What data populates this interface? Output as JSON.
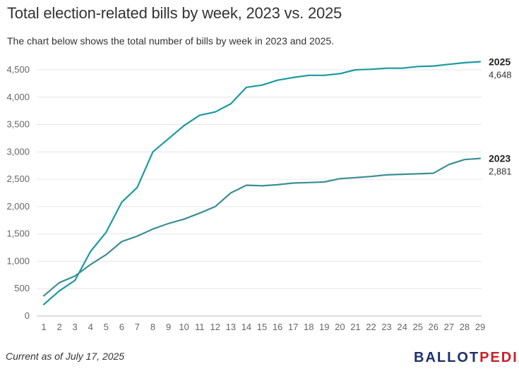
{
  "title": "Total election-related bills by week, 2023 vs. 2025",
  "subtitle": "The chart below shows the total number of bills by week in 2023 and 2025.",
  "footnote": "Current as of July 17, 2025",
  "logo": {
    "part1": "BALLOT",
    "part2": "PEDIA"
  },
  "chart_data": {
    "type": "line",
    "x": [
      1,
      2,
      3,
      4,
      5,
      6,
      7,
      8,
      9,
      10,
      11,
      12,
      13,
      14,
      15,
      16,
      17,
      18,
      19,
      20,
      21,
      22,
      23,
      24,
      25,
      26,
      27,
      28,
      29
    ],
    "ylim": [
      0,
      4500
    ],
    "yticks": [
      0,
      500,
      1000,
      1500,
      2000,
      2500,
      3000,
      3500,
      4000,
      4500
    ],
    "ytick_labels": [
      "0",
      "500",
      "1,000",
      "1,500",
      "2,000",
      "2,500",
      "3,000",
      "3,500",
      "4,000",
      "4,500"
    ],
    "grid": true,
    "colors": {
      "2025": "#1a9aa0",
      "2023": "#3b8f94"
    },
    "series": [
      {
        "name": "2025",
        "end_label": "4,648",
        "values": [
          210,
          460,
          650,
          1180,
          1530,
          2080,
          2350,
          3000,
          3240,
          3480,
          3670,
          3730,
          3880,
          4180,
          4220,
          4310,
          4360,
          4400,
          4400,
          4430,
          4500,
          4510,
          4530,
          4530,
          4560,
          4570,
          4600,
          4630,
          4648
        ]
      },
      {
        "name": "2023",
        "end_label": "2,881",
        "values": [
          370,
          610,
          730,
          940,
          1120,
          1360,
          1460,
          1590,
          1690,
          1770,
          1880,
          2000,
          2250,
          2390,
          2380,
          2400,
          2430,
          2440,
          2450,
          2510,
          2530,
          2550,
          2580,
          2590,
          2600,
          2610,
          2770,
          2860,
          2881
        ]
      }
    ]
  }
}
